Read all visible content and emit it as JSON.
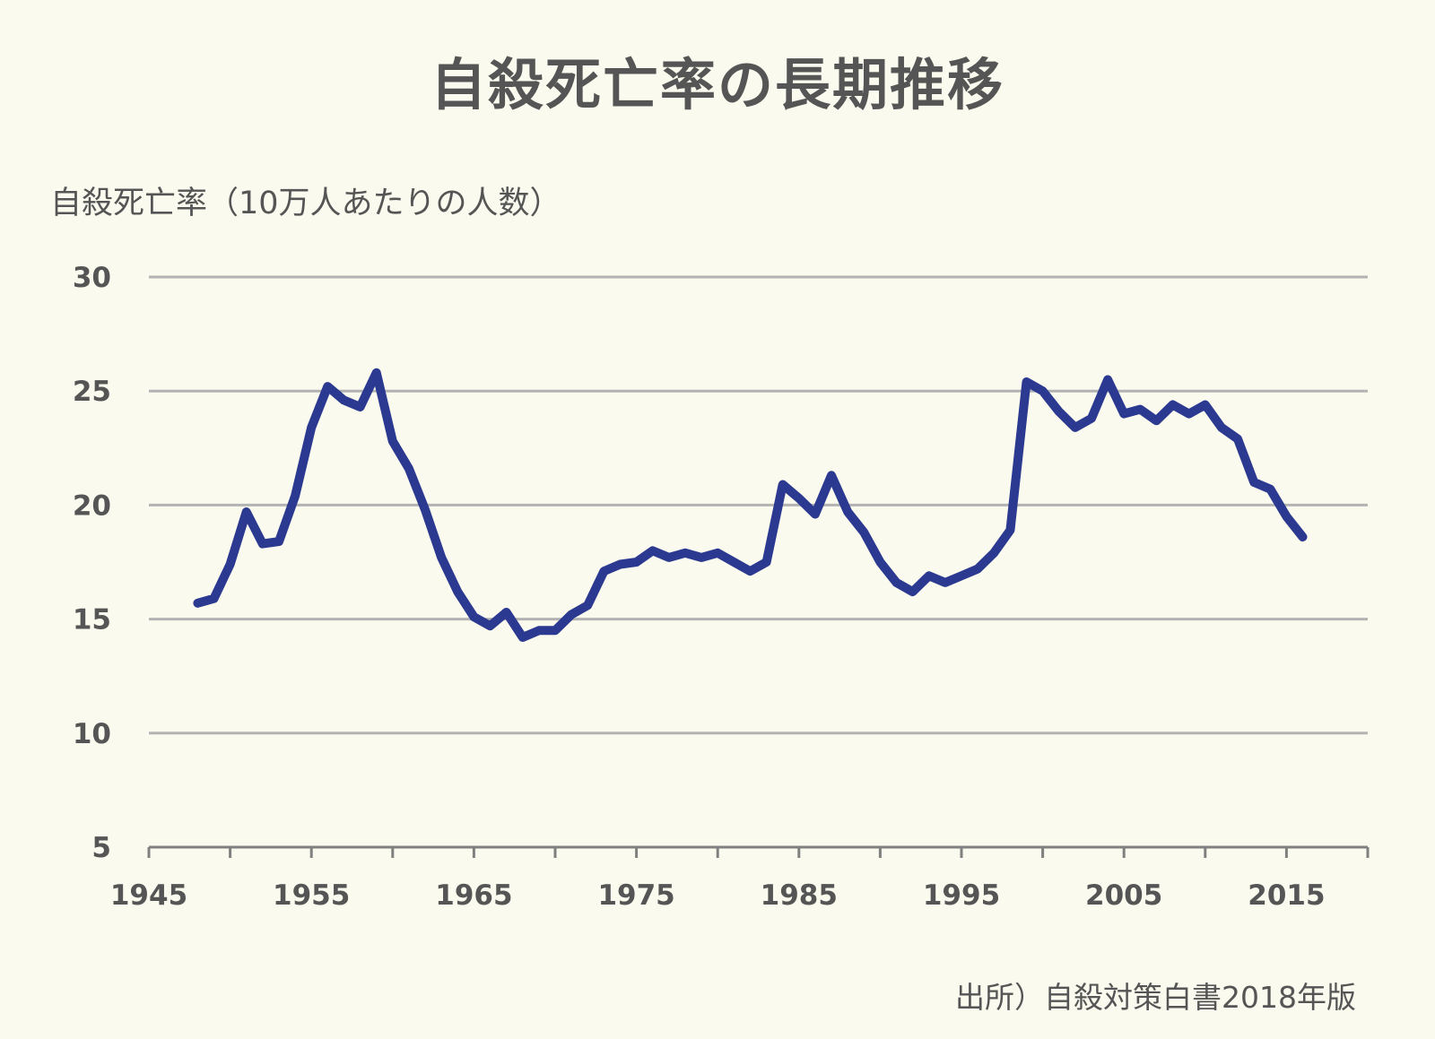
{
  "chart_data": {
    "type": "line",
    "title": "自殺死亡率の長期推移",
    "ylabel": "自殺死亡率（10万人あたりの人数）",
    "xlabel": "",
    "source": "出所）自殺対策白書2018年版",
    "ylim": [
      5,
      30
    ],
    "xlim": [
      1945,
      2020
    ],
    "yticks": [
      5,
      10,
      15,
      20,
      25,
      30
    ],
    "xticks": [
      1945,
      1955,
      1965,
      1975,
      1985,
      1995,
      2005,
      2015
    ],
    "grid": true,
    "line_color": "#2b3990",
    "x": [
      1948,
      1949,
      1950,
      1951,
      1952,
      1953,
      1954,
      1955,
      1956,
      1957,
      1958,
      1959,
      1960,
      1961,
      1962,
      1963,
      1964,
      1965,
      1966,
      1967,
      1968,
      1969,
      1970,
      1971,
      1972,
      1973,
      1974,
      1975,
      1976,
      1977,
      1978,
      1979,
      1980,
      1981,
      1982,
      1983,
      1984,
      1985,
      1986,
      1987,
      1988,
      1989,
      1990,
      1991,
      1992,
      1993,
      1994,
      1995,
      1996,
      1997,
      1998,
      1999,
      2000,
      2001,
      2002,
      2003,
      2004,
      2005,
      2006,
      2007,
      2008,
      2009,
      2010,
      2011,
      2012,
      2013,
      2014,
      2015,
      2016
    ],
    "y": [
      15.7,
      15.9,
      17.4,
      19.7,
      18.3,
      18.4,
      20.4,
      23.4,
      25.2,
      24.6,
      24.3,
      25.8,
      22.8,
      21.6,
      19.8,
      17.7,
      16.2,
      15.1,
      14.7,
      15.3,
      14.2,
      14.5,
      14.5,
      15.2,
      15.6,
      17.1,
      17.4,
      17.5,
      18.0,
      17.7,
      17.9,
      17.7,
      17.9,
      17.5,
      17.1,
      17.5,
      20.9,
      20.3,
      19.6,
      21.3,
      19.7,
      18.8,
      17.5,
      16.6,
      16.2,
      16.9,
      16.6,
      16.9,
      17.2,
      17.9,
      18.9,
      25.4,
      25.0,
      24.1,
      23.4,
      23.8,
      25.5,
      24.0,
      24.2,
      23.7,
      24.4,
      24.0,
      24.4,
      23.4,
      22.9,
      21.0,
      20.7,
      19.5,
      18.6
    ]
  }
}
